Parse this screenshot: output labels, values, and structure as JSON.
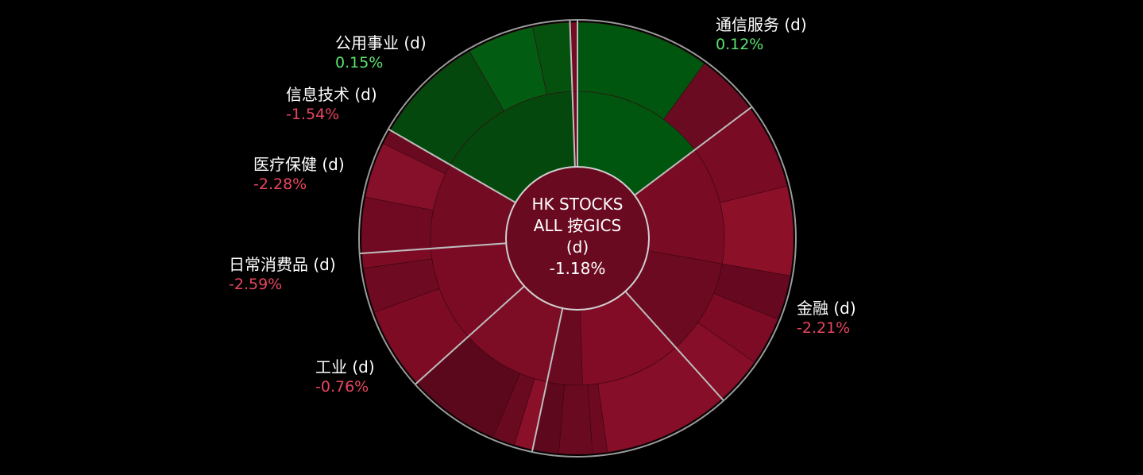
{
  "colors": {
    "background": "#000000",
    "positive": "#5be26f",
    "negative": "#e8455f",
    "ring_border": "#9a9a9a"
  },
  "chart_data": {
    "type": "sunburst",
    "center": {
      "lines": [
        "HK STOCKS",
        "ALL 按GICS",
        "(d)",
        "-1.18%"
      ]
    },
    "sectors": [
      {
        "name": "通信服务 (d)",
        "value": "0.12%",
        "change": 0.12,
        "color": "#0b4a0b",
        "subs": [
          {
            "color": "#00550f",
            "leaves": [
              "#00550f",
              "#6b0b22"
            ]
          }
        ]
      },
      {
        "name": "金融 (d)",
        "value": "-2.21%",
        "change": -2.21,
        "color": "#7d0a25",
        "subs": [
          {
            "color": "#7a0b24",
            "leaves": [
              "#7a0b24",
              "#8d1029",
              "#6e0a22"
            ]
          },
          {
            "color": "#6c0a21",
            "leaves": [
              "#650820",
              "#7e0b25",
              "#860e28",
              "#6f0a22"
            ]
          }
        ]
      },
      {
        "name": "工业 (d)",
        "value": "-0.76%",
        "change": -0.76,
        "color": "#730b24",
        "subs": [
          {
            "color": "#820c26",
            "leaves": [
              "#860e28",
              "#6d0a21"
            ]
          },
          {
            "color": "#6a0a21",
            "leaves": [
              "#6a0a21",
              "#5e081d"
            ]
          }
        ]
      },
      {
        "name": "日常消费品 (d)",
        "value": "-2.59%",
        "change": -2.59,
        "color": "#780b24",
        "subs": [
          {
            "color": "#7d0c25",
            "leaves": [
              "#8a0f28",
              "#6a0a20",
              "#5c081c"
            ]
          }
        ]
      },
      {
        "name": "医疗保健 (d)",
        "value": "-2.28%",
        "change": -2.28,
        "color": "#7a0b24",
        "subs": [
          {
            "color": "#7b0b24",
            "leaves": [
              "#7d0b24",
              "#6e0a21"
            ]
          }
        ]
      },
      {
        "name": "信息技术 (d)",
        "value": "-1.54%",
        "change": -1.54,
        "color": "#6f0a22",
        "subs": [
          {
            "color": "#730b23",
            "leaves": [
              "#700a22",
              "#86102a",
              "#6a0a21"
            ]
          }
        ]
      },
      {
        "name": "公用事业 (d)",
        "value": "0.15%",
        "change": 0.15,
        "color": "#06450d",
        "subs": [
          {
            "color": "#05480d",
            "leaves": [
              "#05480d",
              "#025d13",
              "#05520f"
            ]
          }
        ]
      },
      {
        "name": "",
        "value": "",
        "change": null,
        "color": "#6e0a22",
        "subs": [
          {
            "color": "#6e0a22",
            "leaves": [
              "#730b24"
            ]
          }
        ]
      }
    ]
  }
}
